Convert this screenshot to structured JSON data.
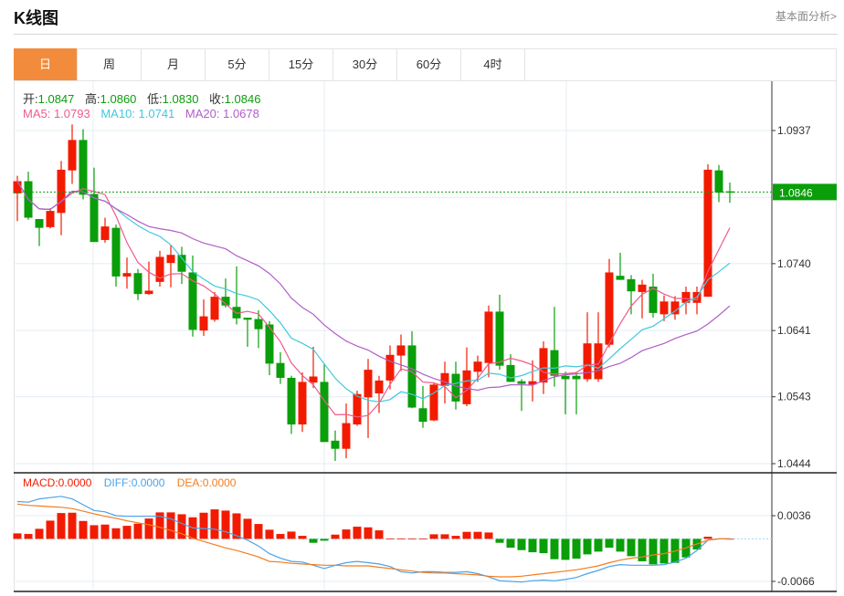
{
  "header": {
    "title": "K线图",
    "link": "基本面分析>"
  },
  "tabs": [
    {
      "label": "日",
      "active": true
    },
    {
      "label": "周"
    },
    {
      "label": "月"
    },
    {
      "label": "5分"
    },
    {
      "label": "15分"
    },
    {
      "label": "30分"
    },
    {
      "label": "60分"
    },
    {
      "label": "4时"
    }
  ],
  "ohlc": {
    "open_label": "开:",
    "open": "1.0847",
    "high_label": "高:",
    "high": "1.0860",
    "low_label": "低:",
    "low": "1.0830",
    "close_label": "收:",
    "close": "1.0846"
  },
  "ma": {
    "ma5": "MA5: 1.0793",
    "ma10": "MA10: 1.0741",
    "ma20": "MA20: 1.0678"
  },
  "macd_legend": {
    "macd": "MACD:0.0000",
    "diff": "DIFF:0.0000",
    "dea": "DEA:0.0000"
  },
  "colors": {
    "up": "#f21b00",
    "down": "#0a9e0a",
    "ma5": "#ef5a8c",
    "ma10": "#40c8dc",
    "ma20": "#b05ec6",
    "diff": "#4aa3e8",
    "dea": "#f57c1f",
    "accent": "#f28c3c"
  },
  "chart_data": [
    {
      "type": "candlestick",
      "title": "K线图",
      "ylim": [
        1.0405,
        1.099
      ],
      "y_ticks": [
        "1.0937",
        "1.0740",
        "1.0641",
        "1.0543",
        "1.0444"
      ],
      "y_tick_values": [
        1.0937,
        1.074,
        1.0641,
        1.0543,
        1.0444
      ],
      "current_price": "1.0846",
      "current_value": 1.0846,
      "candles": [
        [
          1.0844,
          1.087,
          1.0803,
          1.0862
        ],
        [
          1.0862,
          1.0876,
          1.0805,
          1.0808
        ],
        [
          1.0806,
          1.0806,
          1.0766,
          1.0793
        ],
        [
          1.0794,
          1.0822,
          1.0792,
          1.0818
        ],
        [
          1.0815,
          1.0892,
          1.0782,
          1.0879
        ],
        [
          1.0878,
          1.0946,
          1.0858,
          1.0923
        ],
        [
          1.0923,
          1.0939,
          1.0835,
          1.0842
        ],
        [
          1.0843,
          1.0882,
          1.0772,
          1.0772
        ],
        [
          1.0775,
          1.0808,
          1.0771,
          1.0795
        ],
        [
          1.0793,
          1.0798,
          1.0706,
          1.0721
        ],
        [
          1.0721,
          1.0749,
          1.0703,
          1.0726
        ],
        [
          1.0726,
          1.0732,
          1.0686,
          1.0695
        ],
        [
          1.0695,
          1.0743,
          1.0694,
          1.07
        ],
        [
          1.0713,
          1.0759,
          1.0706,
          1.075
        ],
        [
          1.0741,
          1.0767,
          1.0705,
          1.0753
        ],
        [
          1.0753,
          1.0765,
          1.071,
          1.0728
        ],
        [
          1.0727,
          1.0752,
          1.0632,
          1.0642
        ],
        [
          1.0641,
          1.0687,
          1.0633,
          1.0662
        ],
        [
          1.0657,
          1.0698,
          1.0654,
          1.0691
        ],
        [
          1.0691,
          1.0718,
          1.0675,
          1.0678
        ],
        [
          1.0676,
          1.0736,
          1.065,
          1.0659
        ],
        [
          1.066,
          1.066,
          1.0617,
          1.0657
        ],
        [
          1.0658,
          1.0671,
          1.0615,
          1.0643
        ],
        [
          1.065,
          1.0655,
          1.0575,
          1.0592
        ],
        [
          1.0593,
          1.0609,
          1.0562,
          1.0571
        ],
        [
          1.0571,
          1.0574,
          1.0488,
          1.0502
        ],
        [
          1.0502,
          1.0579,
          1.0491,
          1.0565
        ],
        [
          1.0564,
          1.0617,
          1.0556,
          1.0573
        ],
        [
          1.0565,
          1.0591,
          1.0476,
          1.0476
        ],
        [
          1.0478,
          1.0493,
          1.0448,
          1.0466
        ],
        [
          1.0466,
          1.0533,
          1.0452,
          1.0504
        ],
        [
          1.0502,
          1.0552,
          1.05,
          1.0547
        ],
        [
          1.0542,
          1.0599,
          1.0482,
          1.0583
        ],
        [
          1.0548,
          1.0574,
          1.0519,
          1.0567
        ],
        [
          1.0567,
          1.0619,
          1.0554,
          1.0605
        ],
        [
          1.0604,
          1.0635,
          1.0581,
          1.0619
        ],
        [
          1.0619,
          1.064,
          1.0526,
          1.0527
        ],
        [
          1.0526,
          1.0559,
          1.0497,
          1.0506
        ],
        [
          1.0508,
          1.0563,
          1.0507,
          1.0561
        ],
        [
          1.0559,
          1.0595,
          1.0533,
          1.0578
        ],
        [
          1.0577,
          1.0595,
          1.0524,
          1.0536
        ],
        [
          1.0532,
          1.0616,
          1.0529,
          1.0582
        ],
        [
          1.058,
          1.0604,
          1.0565,
          1.0595
        ],
        [
          1.0593,
          1.0678,
          1.0572,
          1.0669
        ],
        [
          1.0669,
          1.0694,
          1.0583,
          1.0589
        ],
        [
          1.059,
          1.0606,
          1.0565,
          1.0565
        ],
        [
          1.0566,
          1.0569,
          1.0522,
          1.0562
        ],
        [
          1.0561,
          1.0597,
          1.0536,
          1.0566
        ],
        [
          1.0564,
          1.0625,
          1.0547,
          1.0615
        ],
        [
          1.0612,
          1.0676,
          1.0558,
          1.0574
        ],
        [
          1.0574,
          1.058,
          1.0517,
          1.0569
        ],
        [
          1.0574,
          1.058,
          1.0517,
          1.0569
        ],
        [
          1.0569,
          1.0668,
          1.0565,
          1.0622
        ],
        [
          1.0569,
          1.0668,
          1.0565,
          1.0622
        ],
        [
          1.062,
          1.0747,
          1.0616,
          1.0727
        ],
        [
          1.0722,
          1.0756,
          1.0716,
          1.0716
        ],
        [
          1.0717,
          1.0723,
          1.0665,
          1.0699
        ],
        [
          1.0698,
          1.0716,
          1.0659,
          1.0709
        ],
        [
          1.0706,
          1.0725,
          1.066,
          1.0667
        ],
        [
          1.0665,
          1.0693,
          1.0655,
          1.0684
        ],
        [
          1.0665,
          1.0692,
          1.0657,
          1.0684
        ],
        [
          1.0682,
          1.0706,
          1.0665,
          1.0698
        ],
        [
          1.0682,
          1.0706,
          1.0665,
          1.0698
        ],
        [
          1.0691,
          1.0887,
          1.0691,
          1.0879
        ],
        [
          1.0878,
          1.0886,
          1.0831,
          1.0845
        ],
        [
          1.0847,
          1.086,
          1.083,
          1.0846
        ]
      ],
      "series": [
        {
          "name": "MA5"
        },
        {
          "name": "MA10"
        },
        {
          "name": "MA20"
        }
      ]
    },
    {
      "type": "bar+line",
      "title": "MACD",
      "ylim": [
        -0.0075,
        0.0065
      ],
      "y_ticks": [
        "0.0036",
        "-0.0066"
      ],
      "y_tick_values": [
        0.0036,
        -0.0066
      ],
      "macd": [
        0.00085,
        0.00076,
        0.00156,
        0.00283,
        0.00401,
        0.00406,
        0.00278,
        0.00212,
        0.00222,
        0.00165,
        0.00203,
        0.00236,
        0.00316,
        0.00411,
        0.00411,
        0.00382,
        0.00335,
        0.00406,
        0.00458,
        0.00439,
        0.00396,
        0.00312,
        0.00231,
        0.00142,
        0.00076,
        0.00113,
        0.00047,
        -0.00061,
        -0.00028,
        0.00066,
        0.00146,
        0.00189,
        0.00179,
        0.00132,
        5e-05,
        5e-05,
        5e-05,
        5e-05,
        0.00071,
        0.00071,
        0.00047,
        0.00109,
        0.00109,
        0.00099,
        -0.00061,
        -0.00137,
        -0.00175,
        -0.00208,
        -0.00222,
        -0.00316,
        -0.00326,
        -0.00307,
        -0.00241,
        -0.00198,
        -0.00137,
        -0.00198,
        -0.00269,
        -0.00349,
        -0.00396,
        -0.00382,
        -0.00373,
        -0.00288,
        -0.00165,
        0.00033,
        5e-05,
        0.0
      ],
      "diff": [
        0.0058,
        0.0057,
        0.0062,
        0.0064,
        0.0066,
        0.0062,
        0.0053,
        0.0044,
        0.0042,
        0.0036,
        0.0035,
        0.0035,
        0.0035,
        0.0035,
        0.0031,
        0.0024,
        0.0017,
        0.0016,
        0.0015,
        0.0011,
        0.0005,
        -0.0002,
        -0.0011,
        -0.0023,
        -0.003,
        -0.0035,
        -0.0036,
        -0.0041,
        -0.0046,
        -0.0041,
        -0.0037,
        -0.0035,
        -0.0037,
        -0.0039,
        -0.0043,
        -0.0051,
        -0.0053,
        -0.0051,
        -0.0051,
        -0.0052,
        -0.0052,
        -0.0051,
        -0.0054,
        -0.0059,
        -0.0065,
        -0.0066,
        -0.0067,
        -0.0065,
        -0.0064,
        -0.0065,
        -0.0063,
        -0.006,
        -0.0054,
        -0.0049,
        -0.0043,
        -0.004,
        -0.0041,
        -0.0041,
        -0.0041,
        -0.004,
        -0.0036,
        -0.003,
        -0.0018,
        -0.0002,
        0.0,
        0.0
      ],
      "dea": [
        0.0054,
        0.0052,
        0.0051,
        0.005,
        0.0049,
        0.0047,
        0.0043,
        0.0039,
        0.0035,
        0.0032,
        0.0028,
        0.0025,
        0.0022,
        0.0018,
        0.0013,
        0.0008,
        0.0001,
        -0.0004,
        -0.0009,
        -0.0014,
        -0.0018,
        -0.0023,
        -0.0028,
        -0.0035,
        -0.0036,
        -0.0038,
        -0.0039,
        -0.004,
        -0.0041,
        -0.0041,
        -0.0042,
        -0.0042,
        -0.0042,
        -0.0044,
        -0.0046,
        -0.0048,
        -0.005,
        -0.0052,
        -0.0053,
        -0.0053,
        -0.0054,
        -0.0055,
        -0.0056,
        -0.0058,
        -0.0059,
        -0.0059,
        -0.0058,
        -0.0056,
        -0.0054,
        -0.0052,
        -0.005,
        -0.0048,
        -0.0045,
        -0.0042,
        -0.0037,
        -0.0033,
        -0.003,
        -0.0028,
        -0.0025,
        -0.0023,
        -0.0019,
        -0.0014,
        -0.0008,
        -0.0002,
        0.0,
        0.0
      ]
    }
  ]
}
